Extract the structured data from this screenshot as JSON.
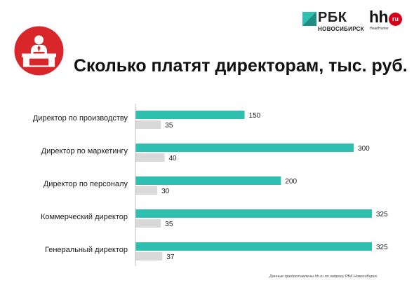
{
  "header": {
    "rbc_logo_text": "РБК",
    "rbc_city": "НОВОСИБИРСК",
    "hh_logo_text": "hh",
    "hh_badge": "ru",
    "hh_subtitle": "HeadHunter",
    "icon": "director-at-desk-icon"
  },
  "colors": {
    "accent": "#2ebfb0",
    "secondary": "#d9d9d9",
    "icon_red": "#d9262b"
  },
  "chart_data": {
    "type": "bar",
    "orientation": "horizontal",
    "title": "Сколько платят директорам, тыс. руб.",
    "categories": [
      "Директор по производству",
      "Директор по маркетингу",
      "Директор по персоналу",
      "Коммерческий директор",
      "Генеральный директор"
    ],
    "series": [
      {
        "color": "#2ebfb0",
        "values": [
          150,
          300,
          200,
          325,
          325
        ]
      },
      {
        "color": "#d9d9d9",
        "values": [
          35,
          40,
          30,
          35,
          37
        ]
      }
    ],
    "xlim": [
      0,
      325
    ],
    "grid": false,
    "legend": "none",
    "data_labels": true
  },
  "footer": {
    "source": "Данные предоставлены hh.ru по запросу РБК Новосибирск"
  }
}
